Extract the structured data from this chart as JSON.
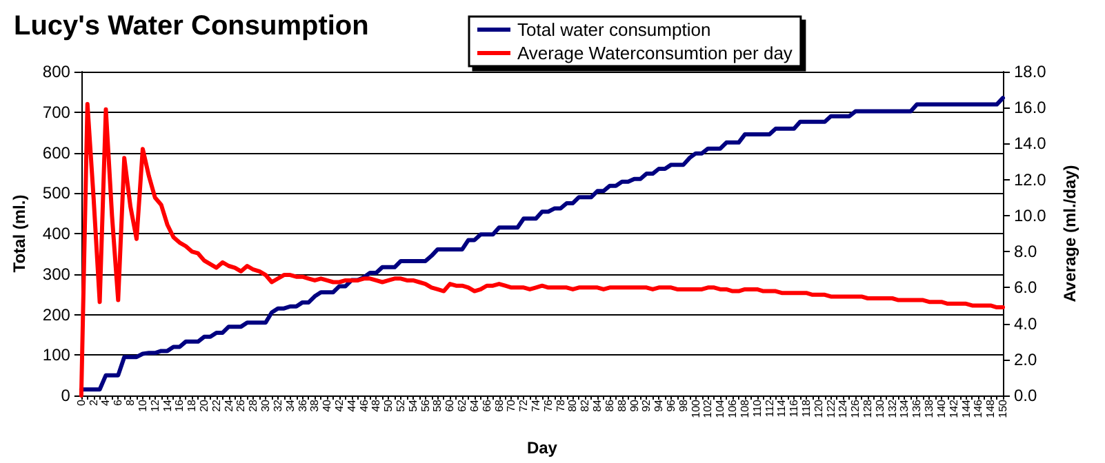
{
  "chart_data": {
    "type": "line",
    "title": "Lucy's Water Consumption",
    "xlabel": "Day",
    "ylabel": "Total (ml.)",
    "y2label": "Average (ml./day)",
    "categories": [
      "0",
      null,
      "2",
      null,
      "4",
      null,
      "6",
      null,
      "8",
      null,
      "10",
      null,
      "12",
      null,
      "14",
      null,
      "16",
      null,
      "18",
      null,
      "20",
      null,
      "22",
      null,
      "24",
      null,
      "26",
      null,
      "28",
      null,
      "30",
      null,
      "32",
      null,
      "34",
      null,
      "36",
      null,
      "38",
      null,
      "40",
      null,
      "42",
      null,
      "44",
      null,
      "46",
      null,
      "48",
      null,
      "50",
      null,
      "52",
      null,
      "54",
      null,
      "56",
      null,
      "58",
      null,
      "60",
      null,
      "62",
      null,
      "64",
      null,
      "66",
      null,
      "68",
      null,
      "70",
      null,
      "72",
      null,
      "74",
      null,
      "76",
      null,
      "78",
      null,
      "80",
      null,
      "82",
      null,
      "84",
      null,
      "86",
      null,
      "88",
      null,
      "90",
      null,
      "92",
      null,
      "94",
      null,
      "96",
      null,
      "98",
      null,
      "100",
      null,
      "102",
      null,
      "104",
      null,
      "106",
      null,
      "108",
      null,
      "110",
      null,
      "112",
      null,
      "114",
      null,
      "116",
      null,
      "118",
      null,
      "120",
      null,
      "122",
      null,
      "124",
      null,
      "126",
      null,
      "128",
      null,
      "130",
      null,
      "132",
      null,
      "134",
      null,
      "136",
      null,
      "138",
      null,
      "140",
      null,
      "142",
      null,
      "144",
      null,
      "146",
      null,
      "148",
      null,
      "150"
    ],
    "series": [
      {
        "name": "Total water consumption",
        "color": "#000080",
        "values": [
          15,
          15,
          15,
          15,
          50,
          50,
          50,
          95,
          95,
          95,
          103,
          105,
          105,
          110,
          110,
          120,
          120,
          133,
          133,
          133,
          145,
          145,
          155,
          155,
          170,
          170,
          170,
          180,
          180,
          180,
          180,
          205,
          215,
          215,
          220,
          220,
          230,
          230,
          245,
          255,
          255,
          255,
          270,
          270,
          285,
          285,
          292,
          303,
          303,
          317,
          317,
          317,
          332,
          332,
          332,
          332,
          332,
          345,
          361,
          361,
          361,
          361,
          361,
          384,
          384,
          398,
          398,
          398,
          415,
          415,
          415,
          415,
          437,
          437,
          437,
          454,
          454,
          462,
          462,
          475,
          475,
          490,
          490,
          490,
          505,
          505,
          518,
          518,
          528,
          528,
          535,
          535,
          548,
          548,
          560,
          560,
          570,
          570,
          570,
          587,
          598,
          598,
          610,
          610,
          610,
          625,
          625,
          625,
          645,
          645,
          645,
          645,
          645,
          659,
          659,
          659,
          659,
          676,
          676,
          676,
          676,
          676,
          690,
          690,
          690,
          690,
          702,
          702,
          702,
          702,
          702,
          702,
          702,
          702,
          702,
          702,
          719,
          719,
          719,
          719,
          719,
          719,
          719,
          719,
          719,
          719,
          719,
          719,
          719,
          719,
          735
        ]
      },
      {
        "name": "Average Waterconsumtion per day",
        "color": "#ff0000",
        "axis": "y2",
        "values": [
          0,
          16.2,
          11.0,
          5.2,
          15.9,
          10.0,
          5.3,
          13.2,
          10.5,
          8.7,
          13.7,
          12.2,
          11.0,
          10.6,
          9.5,
          8.8,
          8.5,
          8.3,
          8.0,
          7.9,
          7.5,
          7.3,
          7.1,
          7.4,
          7.2,
          7.1,
          6.9,
          7.2,
          7.0,
          6.9,
          6.7,
          6.3,
          6.5,
          6.7,
          6.7,
          6.6,
          6.6,
          6.5,
          6.4,
          6.5,
          6.4,
          6.3,
          6.3,
          6.4,
          6.4,
          6.4,
          6.5,
          6.5,
          6.4,
          6.3,
          6.4,
          6.5,
          6.5,
          6.4,
          6.4,
          6.3,
          6.2,
          6.0,
          5.9,
          5.8,
          6.2,
          6.1,
          6.1,
          6.0,
          5.8,
          5.9,
          6.1,
          6.1,
          6.2,
          6.1,
          6.0,
          6.0,
          6.0,
          5.9,
          6.0,
          6.1,
          6.0,
          6.0,
          6.0,
          6.0,
          5.9,
          6.0,
          6.0,
          6.0,
          6.0,
          5.9,
          6.0,
          6.0,
          6.0,
          6.0,
          6.0,
          6.0,
          6.0,
          5.9,
          6.0,
          6.0,
          6.0,
          5.9,
          5.9,
          5.9,
          5.9,
          5.9,
          6.0,
          6.0,
          5.9,
          5.9,
          5.8,
          5.8,
          5.9,
          5.9,
          5.9,
          5.8,
          5.8,
          5.8,
          5.7,
          5.7,
          5.7,
          5.7,
          5.7,
          5.6,
          5.6,
          5.6,
          5.5,
          5.5,
          5.5,
          5.5,
          5.5,
          5.5,
          5.4,
          5.4,
          5.4,
          5.4,
          5.4,
          5.3,
          5.3,
          5.3,
          5.3,
          5.3,
          5.2,
          5.2,
          5.2,
          5.1,
          5.1,
          5.1,
          5.1,
          5.0,
          5.0,
          5.0,
          5.0,
          4.9,
          4.9
        ]
      }
    ],
    "ylim": [
      0,
      800
    ],
    "yticks": [
      0,
      100,
      200,
      300,
      400,
      500,
      600,
      700,
      800
    ],
    "y2lim": [
      0,
      18
    ],
    "y2ticks": [
      {
        "value": 0,
        "label": "0.0"
      },
      {
        "value": 2,
        "label": "2.0"
      },
      {
        "value": 4,
        "label": "4.0"
      },
      {
        "value": 6,
        "label": "6.0"
      },
      {
        "value": 8,
        "label": "8.0"
      },
      {
        "value": 10,
        "label": "10.0"
      },
      {
        "value": 12,
        "label": "12.0"
      },
      {
        "value": 14,
        "label": "14.0"
      },
      {
        "value": 16,
        "label": "16.0"
      },
      {
        "value": 18,
        "label": "18.0"
      }
    ],
    "grid": "y",
    "legend": "top",
    "marker": "none",
    "line_style": "solid"
  }
}
